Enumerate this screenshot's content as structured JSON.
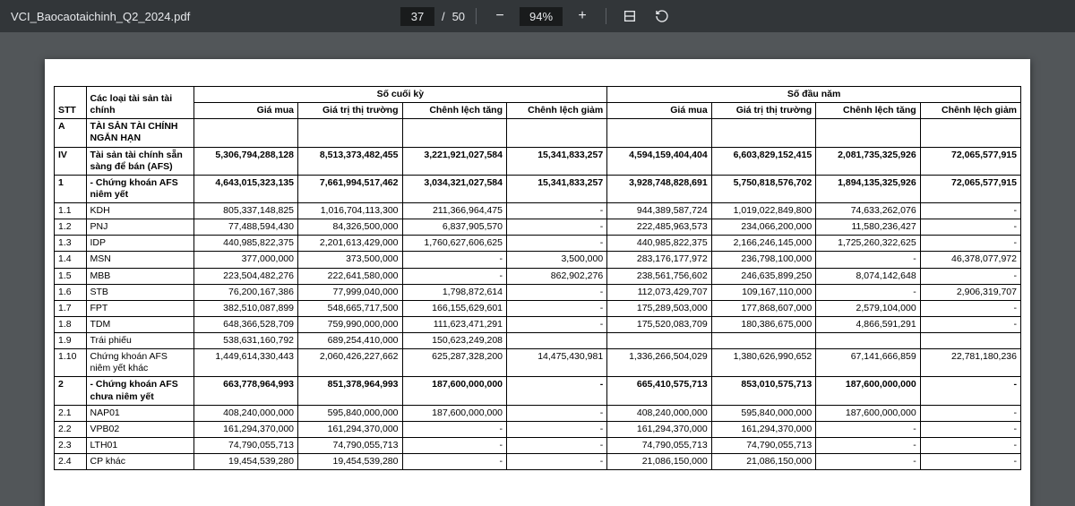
{
  "toolbar": {
    "filename": "VCI_Baocaotaichinh_Q2_2024.pdf",
    "page_current": "37",
    "page_total": "50",
    "zoom": "94%"
  },
  "table": {
    "group_left": "Số cuối kỳ",
    "group_right": "Số đầu năm",
    "headers": {
      "stt": "STT",
      "label": "Các loại tài sản tài chính",
      "gia_mua": "Giá mua",
      "gttt": "Giá trị thị trường",
      "cl_tang": "Chênh lệch tăng",
      "cl_giam": "Chênh lệch giảm"
    },
    "rows": [
      {
        "stt": "A",
        "label": "TÀI SẢN TÀI CHÍNH NGẮN HẠN",
        "bold": true,
        "c": [
          "",
          "",
          "",
          "",
          "",
          "",
          "",
          ""
        ]
      },
      {
        "stt": "IV",
        "label": "Tài sản tài chính sẵn sàng để bán (AFS)",
        "bold": true,
        "c": [
          "5,306,794,288,128",
          "8,513,373,482,455",
          "3,221,921,027,584",
          "15,341,833,257",
          "4,594,159,404,404",
          "6,603,829,152,415",
          "2,081,735,325,926",
          "72,065,577,915"
        ]
      },
      {
        "stt": "1",
        "label": "- Chứng khoán AFS niêm yết",
        "bold": true,
        "c": [
          "4,643,015,323,135",
          "7,661,994,517,462",
          "3,034,321,027,584",
          "15,341,833,257",
          "3,928,748,828,691",
          "5,750,818,576,702",
          "1,894,135,325,926",
          "72,065,577,915"
        ]
      },
      {
        "stt": "1.1",
        "label": "KDH",
        "c": [
          "805,337,148,825",
          "1,016,704,113,300",
          "211,366,964,475",
          "-",
          "944,389,587,724",
          "1,019,022,849,800",
          "74,633,262,076",
          "-"
        ]
      },
      {
        "stt": "1.2",
        "label": "PNJ",
        "c": [
          "77,488,594,430",
          "84,326,500,000",
          "6,837,905,570",
          "-",
          "222,485,963,573",
          "234,066,200,000",
          "11,580,236,427",
          "-"
        ]
      },
      {
        "stt": "1.3",
        "label": "IDP",
        "c": [
          "440,985,822,375",
          "2,201,613,429,000",
          "1,760,627,606,625",
          "-",
          "440,985,822,375",
          "2,166,246,145,000",
          "1,725,260,322,625",
          "-"
        ]
      },
      {
        "stt": "1.4",
        "label": "MSN",
        "c": [
          "377,000,000",
          "373,500,000",
          "-",
          "3,500,000",
          "283,176,177,972",
          "236,798,100,000",
          "-",
          "46,378,077,972"
        ]
      },
      {
        "stt": "1.5",
        "label": "MBB",
        "c": [
          "223,504,482,276",
          "222,641,580,000",
          "-",
          "862,902,276",
          "238,561,756,602",
          "246,635,899,250",
          "8,074,142,648",
          "-"
        ]
      },
      {
        "stt": "1.6",
        "label": "STB",
        "c": [
          "76,200,167,386",
          "77,999,040,000",
          "1,798,872,614",
          "-",
          "112,073,429,707",
          "109,167,110,000",
          "-",
          "2,906,319,707"
        ]
      },
      {
        "stt": "1.7",
        "label": "FPT",
        "c": [
          "382,510,087,899",
          "548,665,717,500",
          "166,155,629,601",
          "-",
          "175,289,503,000",
          "177,868,607,000",
          "2,579,104,000",
          "-"
        ]
      },
      {
        "stt": "1.8",
        "label": "TDM",
        "c": [
          "648,366,528,709",
          "759,990,000,000",
          "111,623,471,291",
          "-",
          "175,520,083,709",
          "180,386,675,000",
          "4,866,591,291",
          "-"
        ]
      },
      {
        "stt": "1.9",
        "label": "Trái phiếu",
        "c": [
          "538,631,160,792",
          "689,254,410,000",
          "150,623,249,208",
          "",
          "",
          "",
          "",
          ""
        ]
      },
      {
        "stt": "1.10",
        "label": "Chứng khoán AFS niêm yết khác",
        "c": [
          "1,449,614,330,443",
          "2,060,426,227,662",
          "625,287,328,200",
          "14,475,430,981",
          "1,336,266,504,029",
          "1,380,626,990,652",
          "67,141,666,859",
          "22,781,180,236"
        ]
      },
      {
        "stt": "2",
        "label": "- Chứng khoán AFS chưa niêm yết",
        "bold": true,
        "c": [
          "663,778,964,993",
          "851,378,964,993",
          "187,600,000,000",
          "-",
          "665,410,575,713",
          "853,010,575,713",
          "187,600,000,000",
          "-"
        ]
      },
      {
        "stt": "2.1",
        "label": "NAP01",
        "c": [
          "408,240,000,000",
          "595,840,000,000",
          "187,600,000,000",
          "-",
          "408,240,000,000",
          "595,840,000,000",
          "187,600,000,000",
          "-"
        ]
      },
      {
        "stt": "2.2",
        "label": "VPB02",
        "c": [
          "161,294,370,000",
          "161,294,370,000",
          "-",
          "-",
          "161,294,370,000",
          "161,294,370,000",
          "-",
          "-"
        ]
      },
      {
        "stt": "2.3",
        "label": "LTH01",
        "c": [
          "74,790,055,713",
          "74,790,055,713",
          "-",
          "-",
          "74,790,055,713",
          "74,790,055,713",
          "-",
          "-"
        ]
      },
      {
        "stt": "2.4",
        "label": "CP khác",
        "c": [
          "19,454,539,280",
          "19,454,539,280",
          "-",
          "-",
          "21,086,150,000",
          "21,086,150,000",
          "-",
          "-"
        ]
      }
    ]
  }
}
